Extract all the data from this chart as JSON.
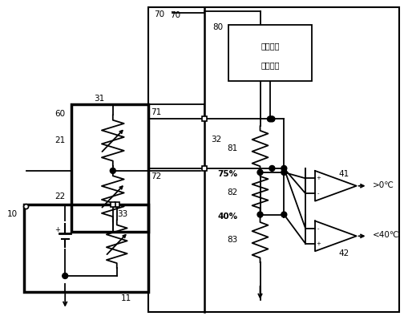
{
  "background_color": "#ffffff",
  "ref_text_line1": "参考电压",
  "ref_text_line2": "生成模块",
  "label_70": "70",
  "label_80": "80",
  "label_71": "71",
  "label_72": "72",
  "label_31": "31",
  "label_32": "32",
  "label_60": "60",
  "label_21": "21",
  "label_22": "22",
  "label_10": "10",
  "label_33": "33",
  "label_11": "11",
  "label_81": "81",
  "label_82": "82",
  "label_83": "83",
  "label_75": "75%",
  "label_40": "40%",
  "label_41": "41",
  "label_42": "42",
  "label_out1": ">0℃",
  "label_out2": "<40℃"
}
